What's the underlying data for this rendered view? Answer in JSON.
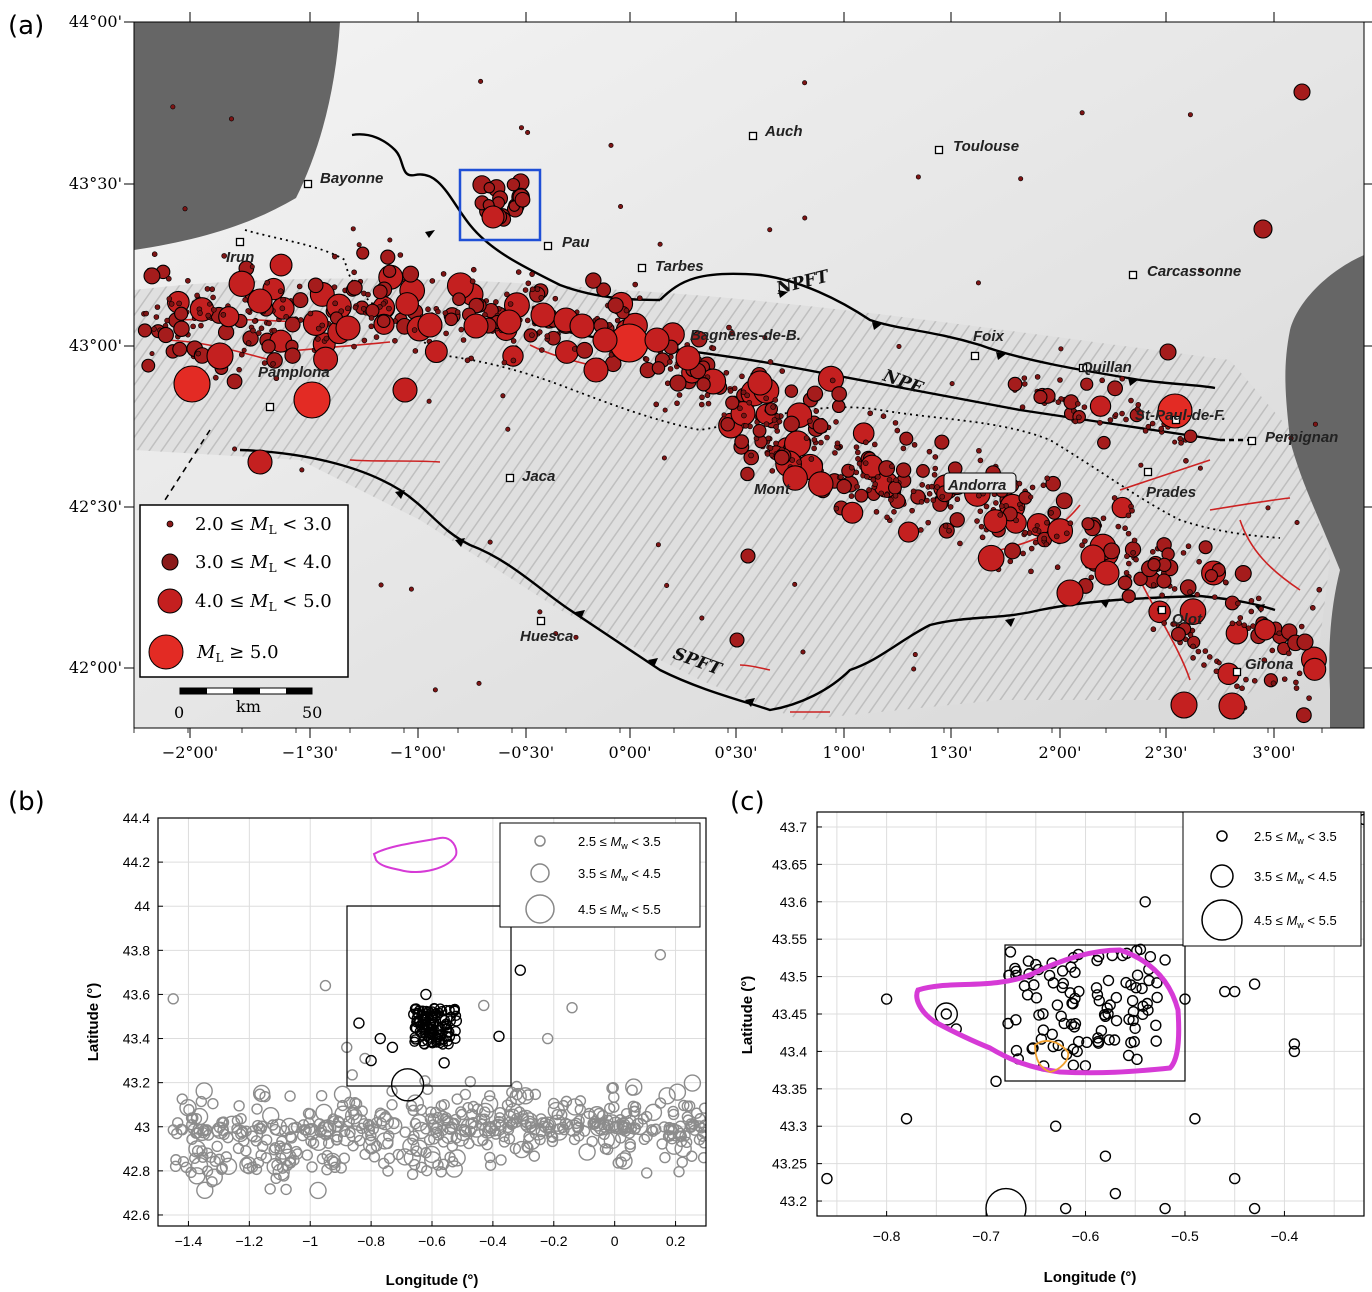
{
  "panel_a": {
    "letter": "(a)",
    "lon_ticks": [
      "−2°00'",
      "−1°30'",
      "−1°00'",
      "−0°30'",
      "0°00'",
      "0°30'",
      "1°00'",
      "1°30'",
      "2°00'",
      "2°30'",
      "3°00'"
    ],
    "lat_ticks": [
      "44°00'",
      "43°30'",
      "43°00'",
      "42°30'",
      "42°00'"
    ],
    "cities": [
      {
        "name": "Auch"
      },
      {
        "name": "Toulouse"
      },
      {
        "name": "Bayonne"
      },
      {
        "name": "Pau"
      },
      {
        "name": "Tarbes"
      },
      {
        "name": "Carcassonne"
      },
      {
        "name": "Irun"
      },
      {
        "name": "Pamplona"
      },
      {
        "name": "Foix"
      },
      {
        "name": "Quillan"
      },
      {
        "name": "St-Paul-de-F."
      },
      {
        "name": "Perpignan"
      },
      {
        "name": "Jaca"
      },
      {
        "name": "Andorra"
      },
      {
        "name": "Prades"
      },
      {
        "name": "Olot"
      },
      {
        "name": "Huesca"
      },
      {
        "name": "Girona"
      },
      {
        "name": "Bagnères-de-B."
      },
      {
        "name": "Mont"
      }
    ],
    "fault_labels": [
      "NPFT",
      "NPF",
      "SPFT"
    ],
    "legend": [
      {
        "label": "2.0 ≤ M_L < 3.0"
      },
      {
        "label": "3.0 ≤ M_L < 4.0"
      },
      {
        "label": "4.0 ≤ M_L < 5.0"
      },
      {
        "label": "M_L ≥ 5.0"
      }
    ],
    "scale_bar": {
      "start": "0",
      "unit": "km",
      "end": "50"
    },
    "colors": {
      "sea": "#666666",
      "quake_small": "#8b1a1a",
      "quake_large": "#e32b24",
      "fault": "#000000",
      "secondary_fault": "#cc2222",
      "inset_box": "#1f4fd6"
    }
  },
  "panel_b": {
    "letter": "(b)",
    "xlabel": "Longitude (°)",
    "ylabel": "Latitude (°)",
    "xlim": [
      -1.5,
      0.3
    ],
    "ylim": [
      42.55,
      44.4
    ],
    "x_ticks": [
      "−1.4",
      "−1.2",
      "−1",
      "−0.8",
      "−0.6",
      "−0.4",
      "−0.2",
      "0",
      "0.2"
    ],
    "y_ticks": [
      "44.4",
      "44.2",
      "44",
      "43.8",
      "43.6",
      "43.4",
      "43.2",
      "43",
      "42.8",
      "42.6"
    ],
    "legend": [
      {
        "label": "2.5 ≤ M_w < 3.5"
      },
      {
        "label": "3.5 ≤ M_w < 4.5"
      },
      {
        "label": "4.5 ≤ M_w < 5.5"
      }
    ]
  },
  "panel_c": {
    "letter": "(c)",
    "xlabel": "Longitude (°)",
    "ylabel": "Latitude (°)",
    "xlim": [
      -0.87,
      -0.32
    ],
    "ylim": [
      43.18,
      43.72
    ],
    "x_ticks": [
      "−0.8",
      "−0.7",
      "−0.6",
      "−0.5",
      "−0.4"
    ],
    "y_ticks": [
      "43.7",
      "43.65",
      "43.6",
      "43.55",
      "43.5",
      "43.45",
      "43.4",
      "43.35",
      "43.3",
      "43.25",
      "43.2"
    ],
    "legend": [
      {
        "label": "2.5 ≤ M_w < 3.5"
      },
      {
        "label": "3.5 ≤ M_w < 4.5"
      },
      {
        "label": "4.5 ≤ M_w < 5.5"
      }
    ],
    "colors": {
      "contour": "#d63ad6",
      "cluster": "#f0a030"
    }
  }
}
